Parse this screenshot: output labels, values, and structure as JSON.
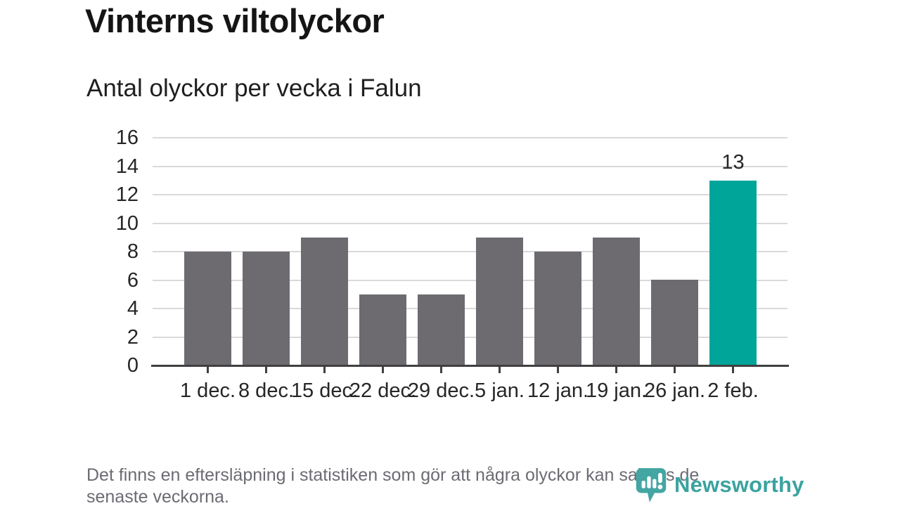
{
  "title": "Vinterns viltolyckor",
  "subtitle": "Antal olyckor per vecka i Falun",
  "footnote": {
    "lines": [
      "Det finns en eftersläpning i statistiken som gör att några olyckor kan saknas de",
      "senaste veckorna."
    ]
  },
  "logo": {
    "wordmark": "Newsworthy",
    "icon": "newsworthy-bubble-chart-icon",
    "icon_color": "#43a6a2",
    "wordmark_color": "#3aa3a0"
  },
  "colors": {
    "bar": "#6d6b70",
    "highlight": "#00a59a",
    "grid": "#d9d9d9",
    "axis": "#404040",
    "axis_text": "#262626",
    "muted_text": "#6b6b73"
  },
  "chart_data": {
    "type": "bar",
    "title": "Vinterns viltolyckor",
    "subtitle": "Antal olyckor per vecka i Falun",
    "categories": [
      "1 dec.",
      "8 dec.",
      "15 dec.",
      "22 dec.",
      "29 dec.",
      "5 jan.",
      "12 jan.",
      "19 jan.",
      "26 jan.",
      "2 feb."
    ],
    "values": [
      8,
      8,
      9,
      5,
      5,
      9,
      8,
      9,
      6,
      13
    ],
    "series_name": "Antal olyckor per vecka",
    "bar_color": "#6d6b70",
    "highlight": {
      "index": 9,
      "label": "13",
      "color": "#00a59a"
    },
    "yticks": [
      0,
      2,
      4,
      6,
      8,
      10,
      12,
      14,
      16
    ],
    "ylim": [
      0,
      16
    ],
    "grid": true,
    "legend": "none",
    "xlabel": "",
    "ylabel": ""
  }
}
